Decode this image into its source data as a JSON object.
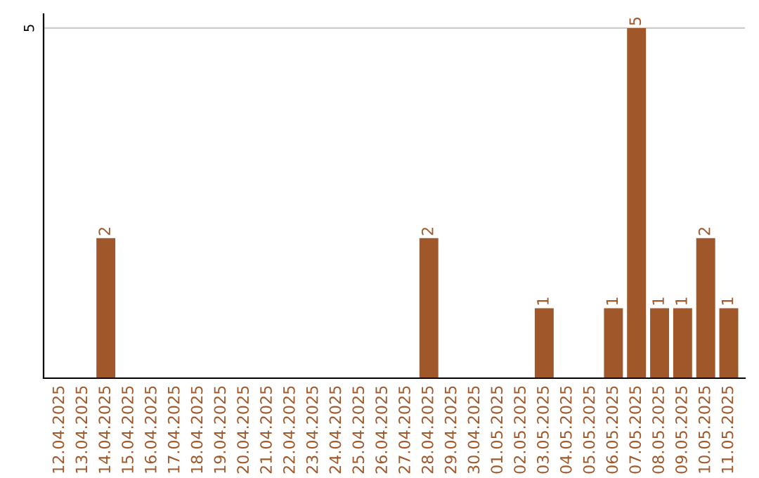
{
  "chart_data": {
    "type": "bar",
    "categories": [
      "12.04.2025",
      "13.04.2025",
      "14.04.2025",
      "15.04.2025",
      "16.04.2025",
      "17.04.2025",
      "18.04.2025",
      "19.04.2025",
      "20.04.2025",
      "21.04.2025",
      "22.04.2025",
      "23.04.2025",
      "24.04.2025",
      "25.04.2025",
      "26.04.2025",
      "27.04.2025",
      "28.04.2025",
      "29.04.2025",
      "30.04.2025",
      "01.05.2025",
      "02.05.2025",
      "03.05.2025",
      "04.05.2025",
      "05.05.2025",
      "06.05.2025",
      "07.05.2025",
      "08.05.2025",
      "09.05.2025",
      "10.05.2025",
      "11.05.2025"
    ],
    "values": [
      0,
      0,
      2,
      0,
      0,
      0,
      0,
      0,
      0,
      0,
      0,
      0,
      0,
      0,
      0,
      0,
      2,
      0,
      0,
      0,
      0,
      1,
      0,
      0,
      1,
      5,
      1,
      1,
      2,
      1
    ],
    "value_labels": [
      null,
      null,
      "2",
      null,
      null,
      null,
      null,
      null,
      null,
      null,
      null,
      null,
      null,
      null,
      null,
      null,
      "2",
      null,
      null,
      null,
      null,
      "1",
      null,
      null,
      "1",
      "5",
      "1",
      "1",
      "2",
      "1"
    ],
    "color": "#a0582a",
    "ylim": [
      0,
      5.2
    ],
    "yticks": [
      5
    ],
    "grid": "y"
  }
}
